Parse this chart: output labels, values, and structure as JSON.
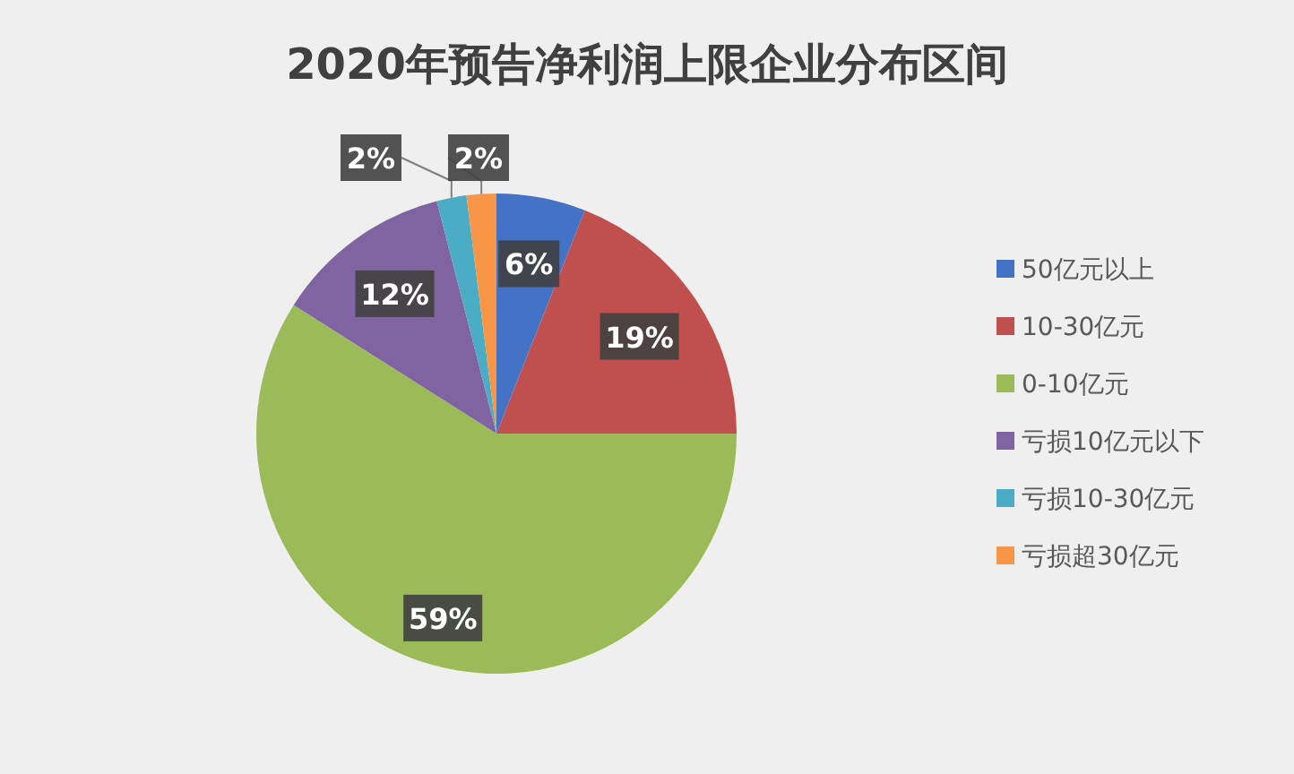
{
  "chart_data": {
    "type": "pie",
    "title": "2020年预告净利润上限企业分布区间",
    "categories": [
      "50亿元以上",
      "10-30亿元",
      "0-10亿元",
      "亏损10亿元以下",
      "亏损10-30亿元",
      "亏损超30亿元"
    ],
    "values": [
      6,
      19,
      59,
      12,
      2,
      2
    ],
    "colors": [
      "#4472c4",
      "#c0504d",
      "#9bbb59",
      "#8064a2",
      "#4bacc6",
      "#f79646"
    ],
    "value_labels": [
      "6%",
      "19%",
      "59%",
      "12%",
      "2%",
      "2%"
    ],
    "legend": "right"
  }
}
